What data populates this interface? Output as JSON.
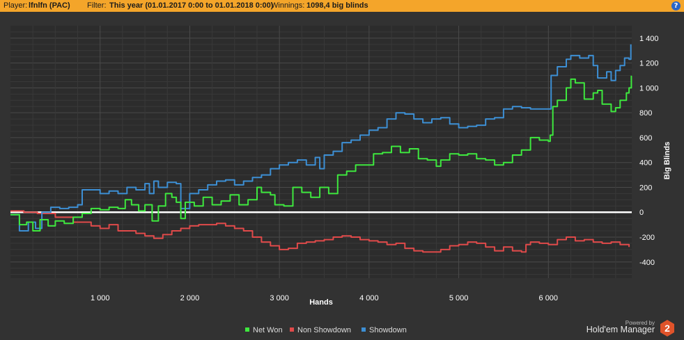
{
  "header": {
    "player_label": "Player:",
    "player_value": "lfnlfn (PAC)",
    "filter_label": "Filter:",
    "filter_value": "This year (01.01.2017 0:00 to 01.01.2018 0:00)",
    "winnings_label": "Winnings:",
    "winnings_value": "1098,4 big blinds",
    "help_icon": "?"
  },
  "chart_data": {
    "type": "line",
    "xlabel": "Hands",
    "ylabel": "Big Blinds",
    "xlim": [
      0,
      6930
    ],
    "ylim": [
      -530,
      1500
    ],
    "x_ticks": [
      1000,
      2000,
      3000,
      4000,
      5000,
      6000
    ],
    "x_tick_labels": [
      "1 000",
      "2 000",
      "3 000",
      "4 000",
      "5 000",
      "6 000"
    ],
    "y_ticks": [
      1400,
      1200,
      1000,
      800,
      600,
      400,
      200,
      0,
      -200,
      -400
    ],
    "y_tick_labels": [
      "1 400",
      "1 200",
      "1 000",
      "800",
      "600",
      "400",
      "200",
      "0",
      "-200",
      "-400"
    ],
    "grid": true,
    "legend_position": "bottom",
    "zero_line_color": "#ffffff",
    "series": [
      {
        "name": "Net Won",
        "color": "#3ee83e",
        "points": [
          [
            0,
            -20
          ],
          [
            100,
            -100
          ],
          [
            180,
            -80
          ],
          [
            250,
            -150
          ],
          [
            330,
            -60
          ],
          [
            420,
            -110
          ],
          [
            500,
            -70
          ],
          [
            600,
            -90
          ],
          [
            700,
            -40
          ],
          [
            800,
            -10
          ],
          [
            900,
            30
          ],
          [
            1000,
            20
          ],
          [
            1100,
            40
          ],
          [
            1200,
            30
          ],
          [
            1280,
            100
          ],
          [
            1350,
            60
          ],
          [
            1430,
            10
          ],
          [
            1500,
            60
          ],
          [
            1580,
            -70
          ],
          [
            1650,
            50
          ],
          [
            1730,
            150
          ],
          [
            1800,
            120
          ],
          [
            1850,
            80
          ],
          [
            1900,
            -50
          ],
          [
            1950,
            80
          ],
          [
            2050,
            50
          ],
          [
            2150,
            120
          ],
          [
            2250,
            60
          ],
          [
            2350,
            90
          ],
          [
            2450,
            140
          ],
          [
            2550,
            60
          ],
          [
            2650,
            100
          ],
          [
            2750,
            200
          ],
          [
            2800,
            160
          ],
          [
            2900,
            140
          ],
          [
            2950,
            60
          ],
          [
            3050,
            50
          ],
          [
            3150,
            200
          ],
          [
            3250,
            160
          ],
          [
            3350,
            120
          ],
          [
            3450,
            200
          ],
          [
            3550,
            150
          ],
          [
            3650,
            300
          ],
          [
            3750,
            330
          ],
          [
            3850,
            380
          ],
          [
            3950,
            380
          ],
          [
            4050,
            470
          ],
          [
            4150,
            480
          ],
          [
            4250,
            530
          ],
          [
            4350,
            480
          ],
          [
            4450,
            510
          ],
          [
            4550,
            430
          ],
          [
            4650,
            420
          ],
          [
            4750,
            370
          ],
          [
            4800,
            420
          ],
          [
            4900,
            470
          ],
          [
            5000,
            460
          ],
          [
            5100,
            470
          ],
          [
            5200,
            430
          ],
          [
            5300,
            420
          ],
          [
            5400,
            380
          ],
          [
            5500,
            400
          ],
          [
            5600,
            460
          ],
          [
            5700,
            500
          ],
          [
            5800,
            600
          ],
          [
            5900,
            580
          ],
          [
            6000,
            570
          ],
          [
            6020,
            620
          ],
          [
            6050,
            850
          ],
          [
            6100,
            900
          ],
          [
            6200,
            1000
          ],
          [
            6250,
            1070
          ],
          [
            6300,
            1040
          ],
          [
            6400,
            910
          ],
          [
            6500,
            960
          ],
          [
            6550,
            980
          ],
          [
            6600,
            870
          ],
          [
            6700,
            810
          ],
          [
            6750,
            840
          ],
          [
            6800,
            900
          ],
          [
            6870,
            960
          ],
          [
            6900,
            1000
          ],
          [
            6925,
            1098
          ]
        ]
      },
      {
        "name": "Non Showdown",
        "color": "#e04a4a",
        "points": [
          [
            0,
            10
          ],
          [
            150,
            0
          ],
          [
            300,
            -10
          ],
          [
            500,
            -40
          ],
          [
            700,
            -80
          ],
          [
            900,
            -110
          ],
          [
            1000,
            -130
          ],
          [
            1100,
            -100
          ],
          [
            1200,
            -150
          ],
          [
            1400,
            -170
          ],
          [
            1500,
            -190
          ],
          [
            1600,
            -210
          ],
          [
            1700,
            -180
          ],
          [
            1800,
            -150
          ],
          [
            1900,
            -130
          ],
          [
            2000,
            -110
          ],
          [
            2100,
            -100
          ],
          [
            2200,
            -100
          ],
          [
            2300,
            -90
          ],
          [
            2400,
            -110
          ],
          [
            2500,
            -130
          ],
          [
            2600,
            -150
          ],
          [
            2700,
            -200
          ],
          [
            2800,
            -240
          ],
          [
            2900,
            -270
          ],
          [
            3000,
            -300
          ],
          [
            3100,
            -290
          ],
          [
            3200,
            -250
          ],
          [
            3300,
            -240
          ],
          [
            3400,
            -230
          ],
          [
            3500,
            -220
          ],
          [
            3600,
            -200
          ],
          [
            3700,
            -190
          ],
          [
            3800,
            -200
          ],
          [
            3900,
            -220
          ],
          [
            4000,
            -230
          ],
          [
            4100,
            -240
          ],
          [
            4200,
            -260
          ],
          [
            4300,
            -250
          ],
          [
            4400,
            -290
          ],
          [
            4500,
            -310
          ],
          [
            4600,
            -320
          ],
          [
            4700,
            -320
          ],
          [
            4800,
            -300
          ],
          [
            4900,
            -270
          ],
          [
            5000,
            -260
          ],
          [
            5100,
            -240
          ],
          [
            5200,
            -250
          ],
          [
            5300,
            -280
          ],
          [
            5400,
            -310
          ],
          [
            5500,
            -280
          ],
          [
            5600,
            -310
          ],
          [
            5700,
            -320
          ],
          [
            5750,
            -260
          ],
          [
            5800,
            -240
          ],
          [
            5900,
            -250
          ],
          [
            6000,
            -260
          ],
          [
            6100,
            -220
          ],
          [
            6200,
            -200
          ],
          [
            6300,
            -230
          ],
          [
            6400,
            -220
          ],
          [
            6500,
            -240
          ],
          [
            6600,
            -250
          ],
          [
            6700,
            -240
          ],
          [
            6800,
            -260
          ],
          [
            6900,
            -280
          ]
        ]
      },
      {
        "name": "Showdown",
        "color": "#3d8fd4",
        "points": [
          [
            0,
            -20
          ],
          [
            100,
            -150
          ],
          [
            200,
            -80
          ],
          [
            280,
            -130
          ],
          [
            350,
            0
          ],
          [
            450,
            40
          ],
          [
            550,
            30
          ],
          [
            650,
            40
          ],
          [
            750,
            60
          ],
          [
            800,
            180
          ],
          [
            900,
            180
          ],
          [
            1000,
            150
          ],
          [
            1100,
            170
          ],
          [
            1200,
            150
          ],
          [
            1300,
            200
          ],
          [
            1400,
            180
          ],
          [
            1500,
            230
          ],
          [
            1550,
            150
          ],
          [
            1600,
            250
          ],
          [
            1650,
            200
          ],
          [
            1750,
            240
          ],
          [
            1850,
            230
          ],
          [
            1900,
            30
          ],
          [
            2000,
            150
          ],
          [
            2100,
            180
          ],
          [
            2200,
            220
          ],
          [
            2300,
            250
          ],
          [
            2400,
            260
          ],
          [
            2500,
            220
          ],
          [
            2600,
            250
          ],
          [
            2700,
            280
          ],
          [
            2800,
            300
          ],
          [
            2900,
            350
          ],
          [
            3000,
            380
          ],
          [
            3100,
            400
          ],
          [
            3200,
            420
          ],
          [
            3300,
            380
          ],
          [
            3400,
            440
          ],
          [
            3450,
            350
          ],
          [
            3500,
            460
          ],
          [
            3600,
            490
          ],
          [
            3700,
            560
          ],
          [
            3800,
            580
          ],
          [
            3900,
            620
          ],
          [
            4000,
            660
          ],
          [
            4100,
            680
          ],
          [
            4200,
            750
          ],
          [
            4300,
            800
          ],
          [
            4400,
            790
          ],
          [
            4500,
            750
          ],
          [
            4600,
            720
          ],
          [
            4700,
            750
          ],
          [
            4800,
            760
          ],
          [
            4900,
            710
          ],
          [
            5000,
            680
          ],
          [
            5100,
            690
          ],
          [
            5200,
            700
          ],
          [
            5300,
            750
          ],
          [
            5400,
            760
          ],
          [
            5500,
            830
          ],
          [
            5600,
            850
          ],
          [
            5700,
            840
          ],
          [
            5800,
            830
          ],
          [
            5900,
            830
          ],
          [
            6000,
            830
          ],
          [
            6030,
            1100
          ],
          [
            6100,
            1170
          ],
          [
            6200,
            1230
          ],
          [
            6250,
            1260
          ],
          [
            6350,
            1240
          ],
          [
            6450,
            1260
          ],
          [
            6500,
            1180
          ],
          [
            6550,
            1080
          ],
          [
            6650,
            1130
          ],
          [
            6700,
            1060
          ],
          [
            6750,
            1140
          ],
          [
            6800,
            1180
          ],
          [
            6850,
            1240
          ],
          [
            6900,
            1230
          ],
          [
            6920,
            1350
          ]
        ]
      }
    ]
  },
  "footer": {
    "powered_by": "Powered by",
    "brand_name": "Hold'em Manager",
    "logo_digit": "2"
  }
}
